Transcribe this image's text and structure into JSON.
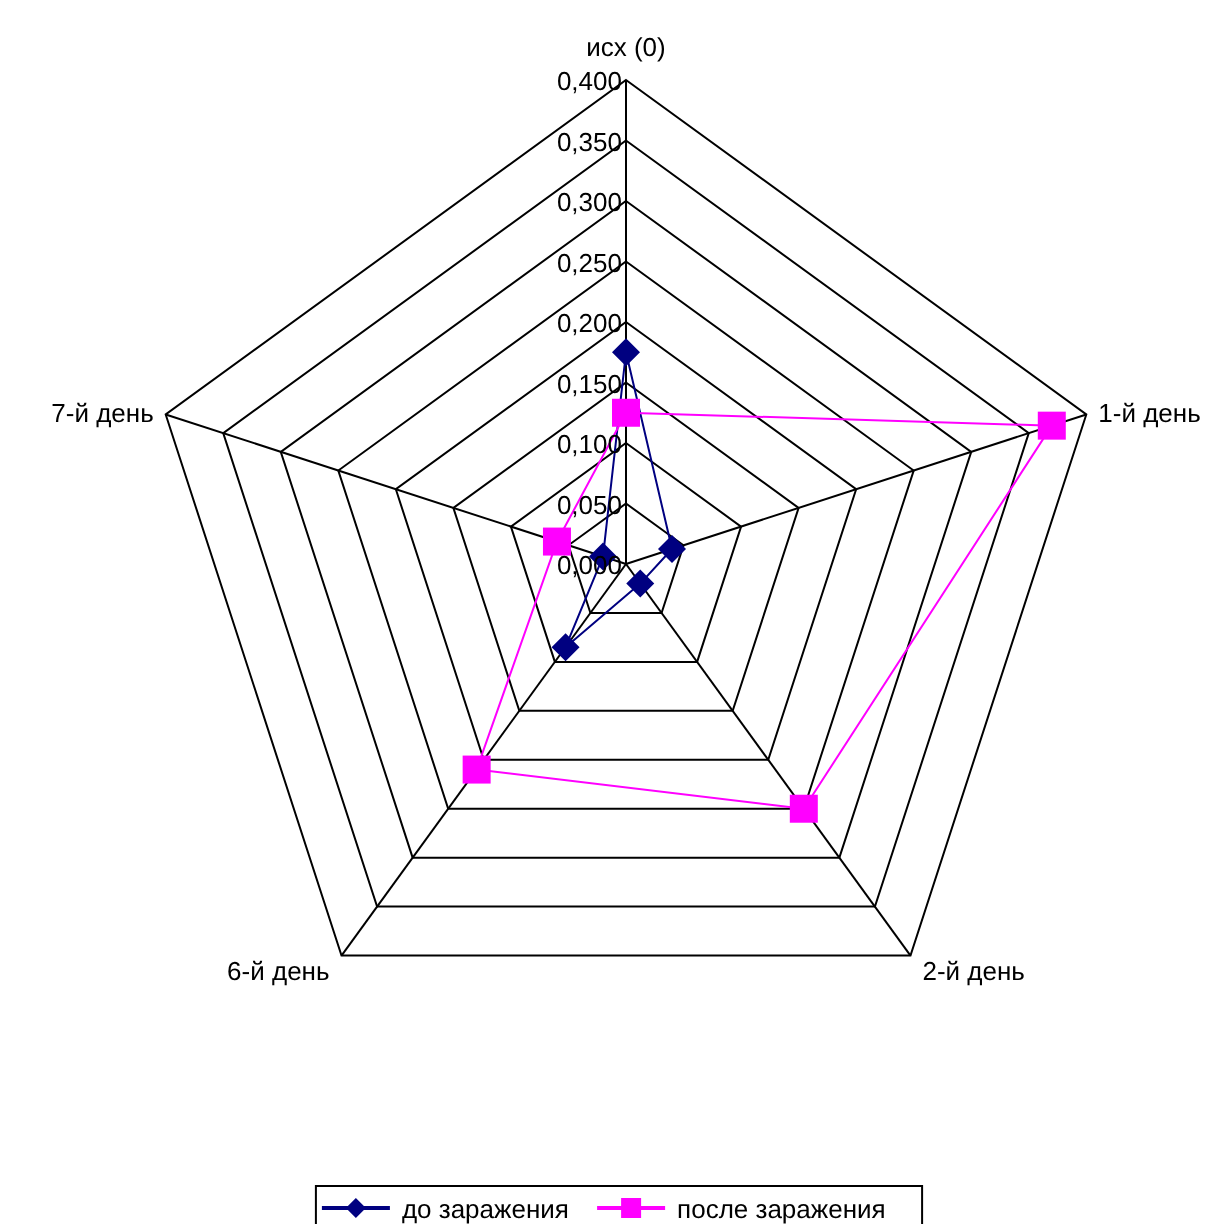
{
  "chart_data": {
    "type": "radar",
    "categories": [
      "исх (0)",
      "1-й день",
      "2-й день",
      "6-й день",
      "7-й день"
    ],
    "ylim": [
      0,
      0.4
    ],
    "yticks": [
      {
        "value": 0,
        "label": "0,000"
      },
      {
        "value": 0.05,
        "label": "0,050"
      },
      {
        "value": 0.1,
        "label": "0,100"
      },
      {
        "value": 0.15,
        "label": "0,150"
      },
      {
        "value": 0.2,
        "label": "0,200"
      },
      {
        "value": 0.25,
        "label": "0,250"
      },
      {
        "value": 0.3,
        "label": "0,300"
      },
      {
        "value": 0.35,
        "label": "0,350"
      },
      {
        "value": 0.4,
        "label": "0,400"
      }
    ],
    "grid": true,
    "legend": "bottom",
    "series": [
      {
        "name": "до заражения",
        "color": "#000080",
        "marker": "diamond",
        "values": [
          0.175,
          0.04,
          0.02,
          0.085,
          0.02
        ]
      },
      {
        "name": "после заражения",
        "color": "#ff00ff",
        "marker": "square",
        "values": [
          0.125,
          0.37,
          0.25,
          0.21,
          0.06
        ]
      }
    ]
  }
}
